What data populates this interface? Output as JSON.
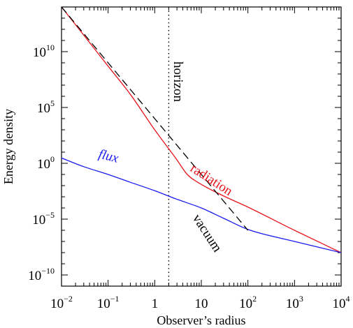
{
  "chart_data": {
    "type": "line",
    "xlabel": "Observer’s radius",
    "ylabel": "Energy density",
    "xscale": "log",
    "yscale": "log",
    "xlim": [
      0.01,
      10000
    ],
    "ylim": [
      1e-11,
      100000000000000.0
    ],
    "grid": false,
    "legend": "none",
    "x_ticks": [
      {
        "base": "10",
        "exp": "−2"
      },
      {
        "base": "10",
        "exp": "−1"
      },
      {
        "base": "1",
        "exp": ""
      },
      {
        "base": "10",
        "exp": ""
      },
      {
        "base": "10",
        "exp": "2"
      },
      {
        "base": "10",
        "exp": "3"
      },
      {
        "base": "10",
        "exp": "4"
      }
    ],
    "y_ticks": [
      {
        "base": "10",
        "exp": "−10"
      },
      {
        "base": "10",
        "exp": "−5"
      },
      {
        "base": "10",
        "exp": "0"
      },
      {
        "base": "10",
        "exp": "5"
      },
      {
        "base": "10",
        "exp": "10"
      }
    ],
    "series": [
      {
        "name": "radiation",
        "color": "#e8141c",
        "dash": "solid",
        "x": [
          0.01,
          0.03,
          0.1,
          0.3,
          1,
          2,
          3,
          5,
          10,
          30,
          100,
          1000,
          10000
        ],
        "y": [
          100000000000000.0,
          300000000000.0,
          500000000.0,
          1500000.0,
          1000.0,
          20.0,
          2.0,
          0.1,
          0.013,
          0.0012,
          0.00012,
          1e-06,
          1e-08
        ]
      },
      {
        "name": "flux",
        "color": "#1a1aee",
        "dash": "solid",
        "x": [
          0.01,
          0.03,
          0.1,
          0.3,
          1,
          3,
          10,
          30,
          100,
          1000,
          10000
        ],
        "y": [
          3.0,
          0.5,
          0.1,
          0.02,
          0.0035,
          0.0006,
          0.0001,
          1.2e-05,
          1.2e-06,
          1e-07,
          1e-08
        ]
      },
      {
        "name": "vacuum",
        "color": "#000000",
        "dash": "dashed",
        "x": [
          0.01,
          0.1,
          1,
          10,
          100
        ],
        "y": [
          100000000000000.0,
          1000000000.0,
          10000.0,
          0.1,
          1e-06
        ]
      }
    ],
    "reference_lines": [
      {
        "orientation": "vertical",
        "x": 2,
        "style": "dotted",
        "label": "horizon"
      }
    ],
    "annotations": [
      {
        "text": "flux",
        "color": "#1a1aee"
      },
      {
        "text": "radiation",
        "color": "#e8141c"
      },
      {
        "text": "vacuum",
        "color": "#000000"
      },
      {
        "text": "horizon",
        "color": "#000000"
      }
    ]
  }
}
